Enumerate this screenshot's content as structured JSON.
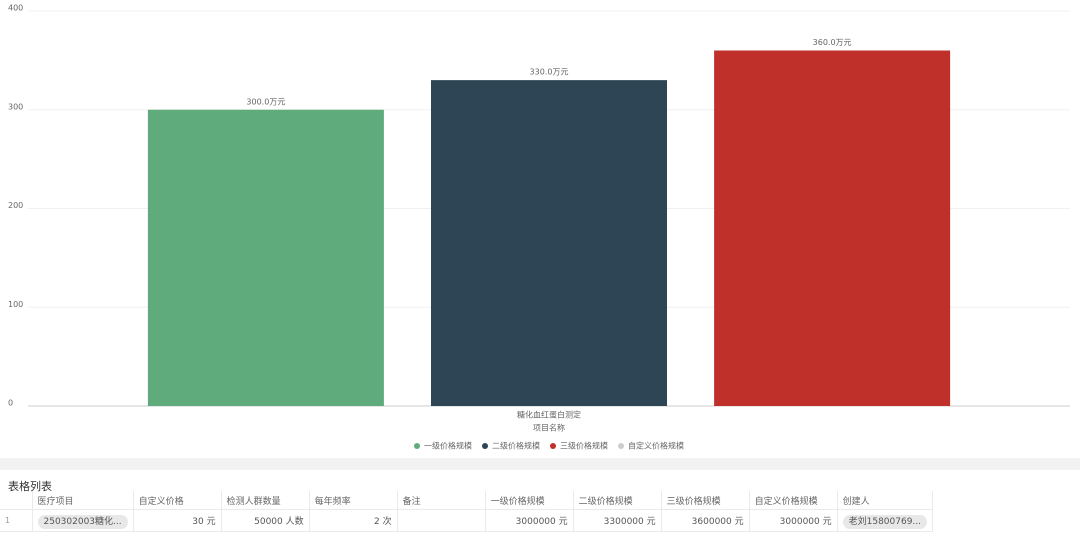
{
  "chart_data": {
    "type": "bar",
    "categories": [
      "糖化血红蛋白测定"
    ],
    "x_label": "项目名称",
    "series": [
      {
        "name": "一级价格规模",
        "color": "#5fab7c",
        "values": [
          300
        ],
        "value_labels": [
          "300.0万元"
        ]
      },
      {
        "name": "二级价格规模",
        "color": "#2e4555",
        "values": [
          330
        ],
        "value_labels": [
          "330.0万元"
        ]
      },
      {
        "name": "三级价格规模",
        "color": "#c0302b",
        "values": [
          360
        ],
        "value_labels": [
          "360.0万元"
        ]
      },
      {
        "name": "自定义价格规模",
        "color": "#cccccc",
        "values": [
          null
        ],
        "visible": false
      }
    ],
    "ylim": [
      0,
      400
    ],
    "yticks": [
      0,
      100,
      200,
      300,
      400
    ],
    "grid": true,
    "legend": "bottom"
  },
  "table": {
    "title": "表格列表",
    "headers": [
      "医疗项目",
      "自定义价格",
      "检测人群数量",
      "每年频率",
      "备注",
      "一级价格规模",
      "二级价格规模",
      "三级价格规模",
      "自定义价格规模",
      "创建人"
    ],
    "rows": [
      {
        "index": "1",
        "cells": [
          "250302003糖化...",
          "30 元",
          "50000 人数",
          "2 次",
          null,
          "3000000 元",
          "3300000 元",
          "3600000 元",
          "3000000 元",
          "老刘15800769..."
        ]
      }
    ]
  }
}
